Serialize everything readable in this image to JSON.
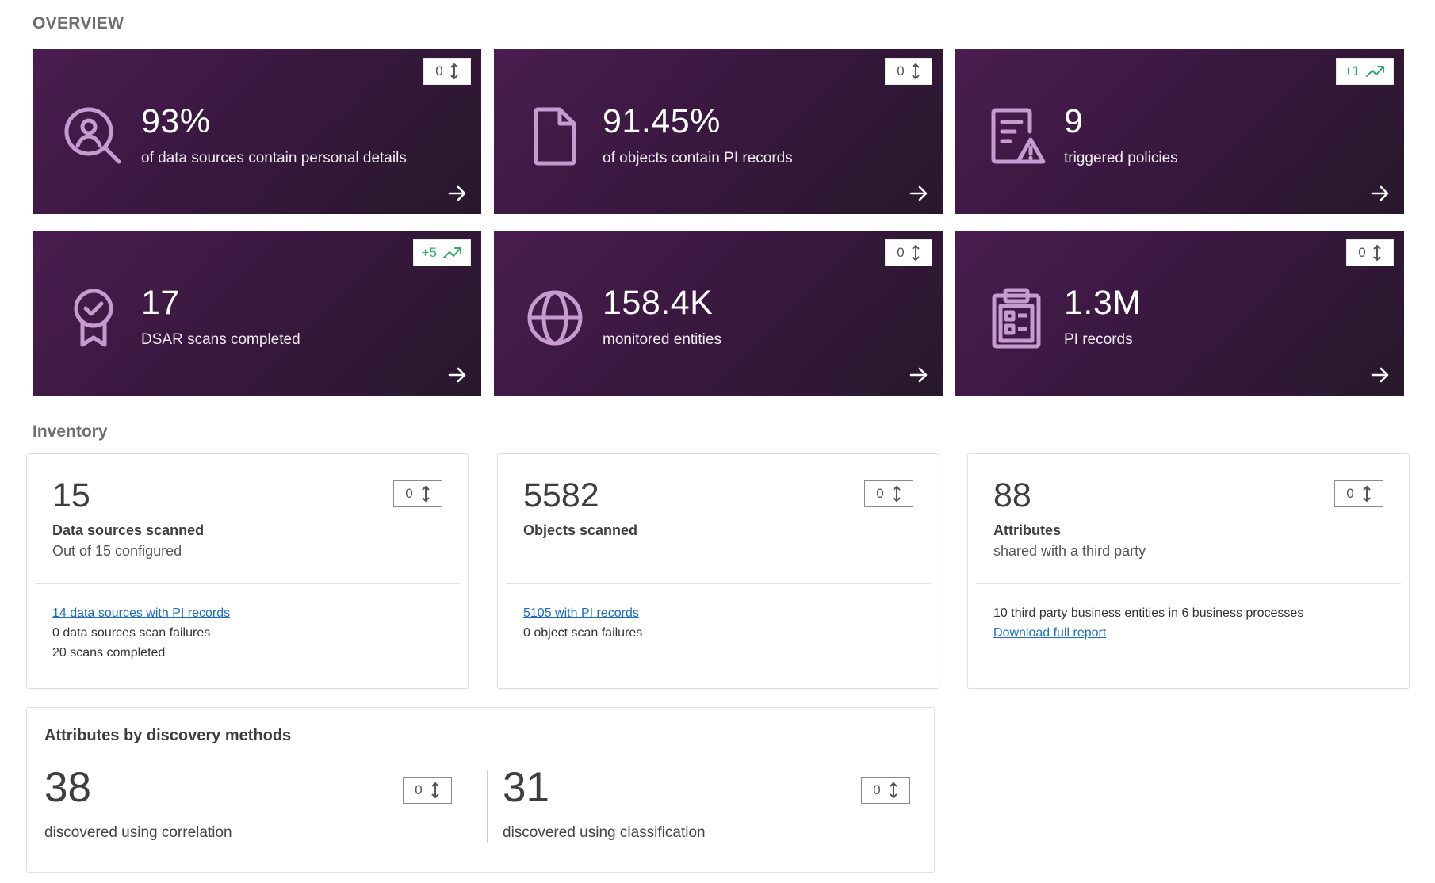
{
  "overview": {
    "title": "OVERVIEW",
    "tiles": [
      {
        "value": "93%",
        "label": "of data sources contain personal details",
        "badge": "0",
        "icon": "search-user-icon",
        "trend": "neutral"
      },
      {
        "value": "91.45%",
        "label": "of objects contain PI records",
        "badge": "0",
        "icon": "file-icon",
        "trend": "neutral"
      },
      {
        "value": "9",
        "label": "triggered policies",
        "badge": "+1",
        "icon": "policy-alert-icon",
        "trend": "up"
      },
      {
        "value": "17",
        "label": "DSAR scans completed",
        "badge": "+5",
        "icon": "award-check-icon",
        "trend": "up"
      },
      {
        "value": "158.4K",
        "label": "monitored entities",
        "badge": "0",
        "icon": "globe-icon",
        "trend": "neutral"
      },
      {
        "value": "1.3M",
        "label": "PI records",
        "badge": "0",
        "icon": "clipboard-list-icon",
        "trend": "neutral"
      }
    ]
  },
  "inventory": {
    "title": "Inventory",
    "cards": [
      {
        "value": "15",
        "title": "Data sources scanned",
        "subtitle": "Out of 15 configured",
        "delta": "0",
        "link": "14 data sources with PI records",
        "lines": [
          "0 data sources scan failures",
          "20 scans completed"
        ]
      },
      {
        "value": "5582",
        "title": "Objects scanned",
        "subtitle": "",
        "delta": "0",
        "link": "5105 with PI records",
        "lines": [
          "0 object scan failures"
        ]
      },
      {
        "value": "88",
        "title": "Attributes",
        "subtitle": "shared with a third party",
        "delta": "0",
        "text": "10 third party business entities in 6 business processes",
        "link": "Download full report"
      }
    ]
  },
  "discovery": {
    "title": "Attributes by discovery methods",
    "correlation": {
      "value": "38",
      "label": "discovered using correlation",
      "delta": "0"
    },
    "classification": {
      "value": "31",
      "label": "discovered using classification",
      "delta": "0"
    }
  },
  "colors": {
    "tile_bg": "#3a1840",
    "icon": "#c79ad0",
    "trend_up": "#2eae63",
    "link": "#1b6cc8"
  }
}
